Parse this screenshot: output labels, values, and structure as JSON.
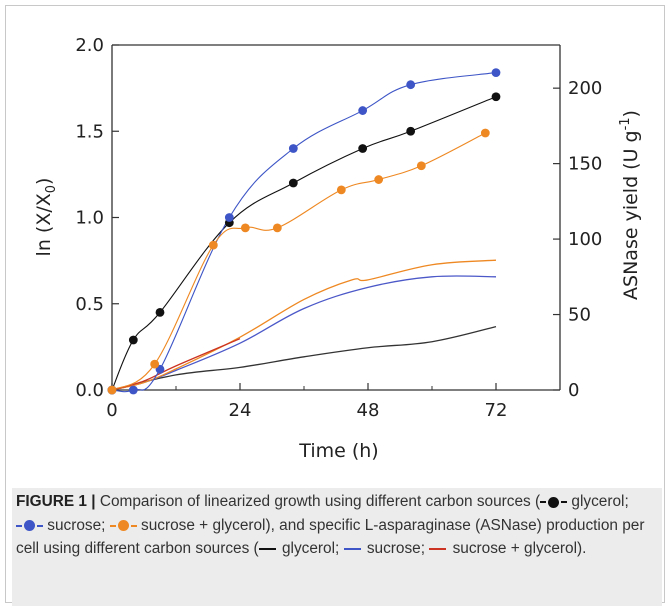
{
  "chart_data": {
    "type": "line",
    "xlabel": "Time (h)",
    "ylabel_left": "ln (X/X",
    "ylabel_left_subscript": "0",
    "ylabel_left_close": ")",
    "ylabel_right": "ASNase yield (U g",
    "ylabel_right_superscript": "-1",
    "ylabel_right_close": ")",
    "xlim": [
      0,
      84
    ],
    "ylim_left": [
      0,
      2.0
    ],
    "ylim_right": [
      0,
      228.6
    ],
    "x_ticks": [
      "0",
      "24",
      "48",
      "72"
    ],
    "y_left_ticks": [
      "0.0",
      "0.5",
      "1.0",
      "1.5",
      "2.0"
    ],
    "y_right_ticks": [
      "0",
      "50",
      "100",
      "150",
      "200"
    ],
    "growth_series": [
      {
        "carbon_source": "glycerol",
        "color": "#111111",
        "x": [
          0,
          4,
          9,
          22,
          34,
          47,
          56,
          72
        ],
        "y": [
          0.0,
          0.29,
          0.45,
          0.97,
          1.2,
          1.4,
          1.5,
          1.7
        ]
      },
      {
        "carbon_source": "sucrose",
        "color": "#3d55c6",
        "x": [
          0,
          4,
          9,
          22,
          34,
          47,
          56,
          72
        ],
        "y": [
          0.0,
          0.0,
          0.12,
          1.0,
          1.4,
          1.62,
          1.77,
          1.84
        ]
      },
      {
        "carbon_source": "sucrose + glycerol",
        "color": "#ee8822",
        "x": [
          0,
          8,
          19,
          25,
          31,
          43,
          50,
          58,
          70
        ],
        "y": [
          0.0,
          0.15,
          0.84,
          0.94,
          0.94,
          1.16,
          1.22,
          1.3,
          1.49
        ]
      }
    ],
    "yield_series": [
      {
        "carbon_source": "glycerol",
        "color": "#333333",
        "x": [
          0,
          12,
          24,
          36,
          48,
          60,
          72
        ],
        "y": [
          0,
          10,
          15,
          22,
          28,
          32,
          42
        ]
      },
      {
        "carbon_source": "sucrose",
        "color": "#4b58c8",
        "x": [
          0,
          6,
          12,
          24,
          36,
          48,
          60,
          72
        ],
        "y": [
          0,
          5,
          13,
          31,
          54,
          68,
          75,
          75
        ]
      },
      {
        "carbon_source": "sucrose + glycerol",
        "color": "#ee8822",
        "x": [
          0,
          6,
          12,
          24,
          36,
          45,
          48,
          60,
          72
        ],
        "y": [
          0,
          5,
          14,
          35,
          60,
          73,
          73,
          83,
          86
        ]
      },
      {
        "carbon_source": "sucrose + glycerol (red trace)",
        "color": "#cc3322",
        "x": [
          0,
          6,
          12,
          24
        ],
        "y": [
          0,
          6,
          16,
          34
        ]
      }
    ]
  },
  "caption": {
    "label": "FIGURE 1 |",
    "part1": " Comparison of linearized growth using different carbon sources (",
    "glycerol": "glycerol;",
    "sucrose": "sucrose;",
    "sucrose_glycerol": "sucrose + glycerol),",
    "part2": " and specific L-asparaginase (ASNase) production per cell using different carbon sources (",
    "line_glycerol": "glycerol;",
    "line_sucrose": "sucrose;",
    "line_sucrose_glycerol": "sucrose + glycerol).",
    "colors": {
      "black": "#111111",
      "blue": "#3d55c6",
      "orange": "#ee8822",
      "red": "#cc3322"
    }
  }
}
